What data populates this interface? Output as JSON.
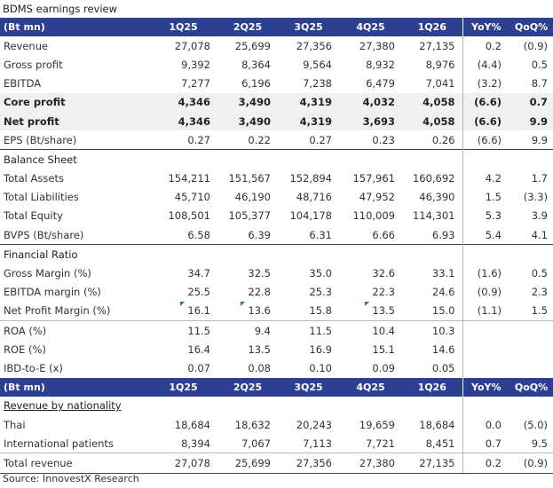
{
  "title": "BDMS earnings review",
  "header": {
    "label": "(Bt mn)",
    "periods": [
      "1Q25",
      "2Q25",
      "3Q25",
      "4Q25",
      "1Q26"
    ],
    "yoy": "YoY%",
    "qoq": "QoQ%"
  },
  "income": [
    {
      "label": "Revenue",
      "values": [
        "27,078",
        "25,699",
        "27,356",
        "27,380",
        "27,135"
      ],
      "yoy": "0.2",
      "qoq": "(0.9)"
    },
    {
      "label": "Gross profit",
      "values": [
        "9,392",
        "8,364",
        "9,564",
        "8,932",
        "8,976"
      ],
      "yoy": "(4.4)",
      "qoq": "0.5"
    },
    {
      "label": "EBITDA",
      "values": [
        "7,277",
        "6,196",
        "7,238",
        "6,479",
        "7,041"
      ],
      "yoy": "(3.2)",
      "qoq": "8.7"
    },
    {
      "label": "Core profit",
      "values": [
        "4,346",
        "3,490",
        "4,319",
        "4,032",
        "4,058"
      ],
      "yoy": "(6.6)",
      "qoq": "0.7"
    },
    {
      "label": "Net profit",
      "values": [
        "4,346",
        "3,490",
        "4,319",
        "3,693",
        "4,058"
      ],
      "yoy": "(6.6)",
      "qoq": "9.9"
    },
    {
      "label": "EPS (Bt/share)",
      "values": [
        "0.27",
        "0.22",
        "0.27",
        "0.23",
        "0.26"
      ],
      "yoy": "(6.6)",
      "qoq": "9.9"
    }
  ],
  "balance_title": "Balance Sheet",
  "balance": [
    {
      "label": "Total Assets",
      "values": [
        "154,211",
        "151,567",
        "152,894",
        "157,961",
        "160,692"
      ],
      "yoy": "4.2",
      "qoq": "1.7"
    },
    {
      "label": "Total Liabilities",
      "values": [
        "45,710",
        "46,190",
        "48,716",
        "47,952",
        "46,390"
      ],
      "yoy": "1.5",
      "qoq": "(3.3)"
    },
    {
      "label": "Total Equity",
      "values": [
        "108,501",
        "105,377",
        "104,178",
        "110,009",
        "114,301"
      ],
      "yoy": "5.3",
      "qoq": "3.9"
    },
    {
      "label": "BVPS (Bt/share)",
      "values": [
        "6.58",
        "6.39",
        "6.31",
        "6.66",
        "6.93"
      ],
      "yoy": "5.4",
      "qoq": "4.1"
    }
  ],
  "ratio_title": "Financial Ratio",
  "ratios": [
    {
      "label": "Gross Margin (%)",
      "values": [
        "34.7",
        "32.5",
        "35.0",
        "32.6",
        "33.1"
      ],
      "yoy": "(1.6)",
      "qoq": "0.5"
    },
    {
      "label": "EBITDA margin (%)",
      "values": [
        "25.5",
        "22.8",
        "25.3",
        "22.3",
        "24.6"
      ],
      "yoy": "(0.9)",
      "qoq": "2.3"
    },
    {
      "label": "Net Profit Margin (%)",
      "values": [
        "16.1",
        "13.6",
        "15.8",
        "13.5",
        "15.0"
      ],
      "yoy": "(1.1)",
      "qoq": "1.5"
    }
  ],
  "returns": [
    {
      "label": "ROA (%)",
      "values": [
        "11.5",
        "9.4",
        "11.5",
        "10.4",
        "10.3"
      ],
      "yoy": "",
      "qoq": ""
    },
    {
      "label": "ROE (%)",
      "values": [
        "16.4",
        "13.5",
        "16.9",
        "15.1",
        "14.6"
      ],
      "yoy": "",
      "qoq": ""
    },
    {
      "label": "IBD-to-E (x)",
      "values": [
        "0.07",
        "0.08",
        "0.10",
        "0.09",
        "0.05"
      ],
      "yoy": "",
      "qoq": ""
    }
  ],
  "nationality_title": "Revenue by nationality",
  "nationality": [
    {
      "label": "Thai",
      "values": [
        "18,684",
        "18,632",
        "20,243",
        "19,659",
        "18,684"
      ],
      "yoy": "0.0",
      "qoq": "(5.0)"
    },
    {
      "label": "International patients",
      "values": [
        "8,394",
        "7,067",
        "7,113",
        "7,721",
        "8,451"
      ],
      "yoy": "0.7",
      "qoq": "9.5"
    },
    {
      "label": "Total revenue",
      "values": [
        "27,078",
        "25,699",
        "27,356",
        "27,380",
        "27,135"
      ],
      "yoy": "0.2",
      "qoq": "(0.9)"
    }
  ],
  "source": "Source: InnovestX Research",
  "colors": {
    "header_bg": "#2d3f91",
    "flag": "#1a8a2a",
    "highlight_row": "#f0f0f0"
  }
}
